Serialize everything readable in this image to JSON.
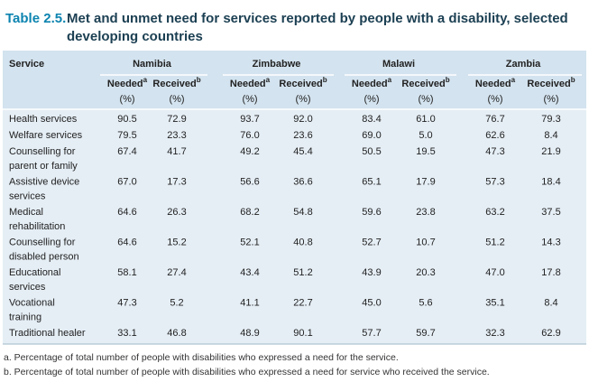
{
  "title": {
    "label": "Table 2.5.",
    "lines": [
      "Met and unmet need for services reported by people with a disability, selected",
      "developing countries"
    ]
  },
  "table": {
    "service_header": "Service",
    "groups": [
      "Namibia",
      "Zimbabwe",
      "Malawi",
      "Zambia"
    ],
    "columns": [
      {
        "label": "Needed",
        "sup": "a",
        "unit": "(%)"
      },
      {
        "label": "Received",
        "sup": "b",
        "unit": "(%)"
      },
      {
        "label": "Needed",
        "sup": "a",
        "unit": "(%)"
      },
      {
        "label": "Received",
        "sup": "b",
        "unit": "(%)"
      },
      {
        "label": "Needed",
        "sup": "a",
        "unit": "(%)"
      },
      {
        "label": "Received",
        "sup": "b",
        "unit": "(%)"
      },
      {
        "label": "Needed",
        "sup": "a",
        "unit": "(%)"
      },
      {
        "label": "Received",
        "sup": "b",
        "unit": "(%)"
      }
    ],
    "rows": [
      {
        "service": [
          "Health services"
        ],
        "cells": [
          "90.5",
          "72.9",
          "93.7",
          "92.0",
          "83.4",
          "61.0",
          "76.7",
          "79.3"
        ]
      },
      {
        "service": [
          "Welfare services"
        ],
        "cells": [
          "79.5",
          "23.3",
          "76.0",
          "23.6",
          "69.0",
          "5.0",
          "62.6",
          "8.4"
        ]
      },
      {
        "service": [
          "Counselling for",
          "parent or family"
        ],
        "cells": [
          "67.4",
          "41.7",
          "49.2",
          "45.4",
          "50.5",
          "19.5",
          "47.3",
          "21.9"
        ]
      },
      {
        "service": [
          "Assistive device",
          "services"
        ],
        "cells": [
          "67.0",
          "17.3",
          "56.6",
          "36.6",
          "65.1",
          "17.9",
          "57.3",
          "18.4"
        ]
      },
      {
        "service": [
          "Medical",
          "rehabilitation"
        ],
        "cells": [
          "64.6",
          "26.3",
          "68.2",
          "54.8",
          "59.6",
          "23.8",
          "63.2",
          "37.5"
        ]
      },
      {
        "service": [
          "Counselling for",
          "disabled person"
        ],
        "cells": [
          "64.6",
          "15.2",
          "52.1",
          "40.8",
          "52.7",
          "10.7",
          "51.2",
          "14.3"
        ]
      },
      {
        "service": [
          "Educational",
          "services"
        ],
        "cells": [
          "58.1",
          "27.4",
          "43.4",
          "51.2",
          "43.9",
          "20.3",
          "47.0",
          "17.8"
        ]
      },
      {
        "service": [
          "Vocational",
          "training"
        ],
        "cells": [
          "47.3",
          "5.2",
          "41.1",
          "22.7",
          "45.0",
          "5.6",
          "35.1",
          "8.4"
        ]
      },
      {
        "service": [
          "Traditional healer"
        ],
        "cells": [
          "33.1",
          "46.8",
          "48.9",
          "90.1",
          "57.7",
          "59.7",
          "32.3",
          "62.9"
        ]
      }
    ]
  },
  "footnotes": [
    "a. Percentage of total number of people with disabilities who expressed a need for the service.",
    "b. Percentage of total number of people with disabilities who expressed a need for service who received the service."
  ]
}
